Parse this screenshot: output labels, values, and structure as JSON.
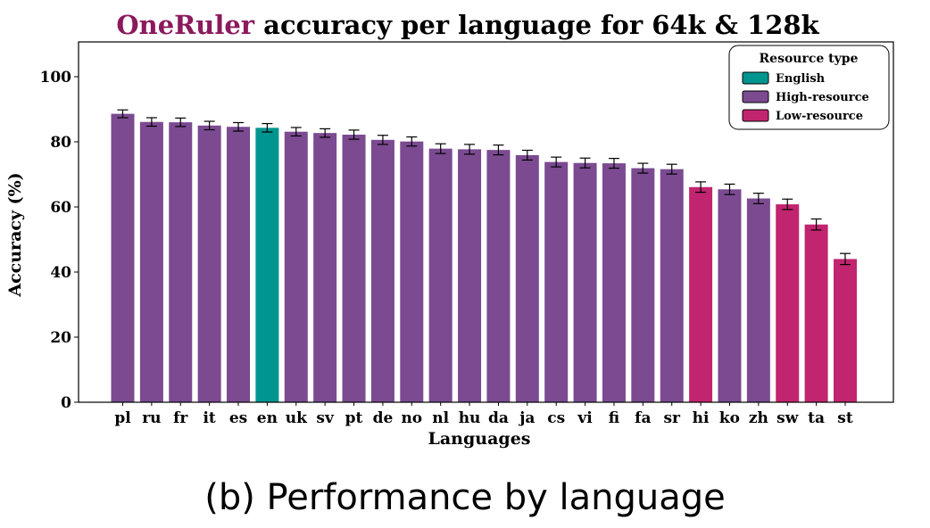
{
  "figure": {
    "caption": "(b) Performance by language"
  },
  "chart_data": {
    "type": "bar",
    "title": {
      "highlight": "OneRuler",
      "rest": " accuracy per language for 64k & 128k",
      "highlight_color": "#8B1A5C"
    },
    "xlabel": "Languages",
    "ylabel": "Accuracy (%)",
    "ylim": [
      0,
      110
    ],
    "yticks": [
      0,
      20,
      40,
      60,
      80,
      100
    ],
    "grid": false,
    "categories": [
      "pl",
      "ru",
      "fr",
      "it",
      "es",
      "en",
      "uk",
      "sv",
      "pt",
      "de",
      "no",
      "nl",
      "hu",
      "da",
      "ja",
      "cs",
      "vi",
      "fi",
      "fa",
      "sr",
      "hi",
      "ko",
      "zh",
      "sw",
      "ta",
      "st"
    ],
    "values": [
      88.6,
      86.1,
      86.0,
      85.0,
      84.6,
      84.3,
      83.1,
      82.7,
      82.2,
      80.6,
      80.1,
      77.9,
      77.7,
      77.5,
      75.9,
      73.8,
      73.5,
      73.4,
      71.9,
      71.6,
      66.1,
      65.4,
      62.6,
      60.8,
      54.6,
      44.0
    ],
    "errors": [
      1.2,
      1.3,
      1.3,
      1.3,
      1.3,
      1.3,
      1.3,
      1.3,
      1.4,
      1.4,
      1.4,
      1.5,
      1.5,
      1.5,
      1.5,
      1.5,
      1.5,
      1.5,
      1.5,
      1.5,
      1.6,
      1.6,
      1.6,
      1.6,
      1.7,
      1.7
    ],
    "groups": [
      "High-resource",
      "High-resource",
      "High-resource",
      "High-resource",
      "High-resource",
      "English",
      "High-resource",
      "High-resource",
      "High-resource",
      "High-resource",
      "High-resource",
      "High-resource",
      "High-resource",
      "High-resource",
      "High-resource",
      "High-resource",
      "High-resource",
      "High-resource",
      "High-resource",
      "High-resource",
      "Low-resource",
      "High-resource",
      "High-resource",
      "Low-resource",
      "Low-resource",
      "Low-resource"
    ],
    "legend": {
      "title": "Resource type",
      "position": "top-right",
      "entries": [
        {
          "name": "English",
          "color": "#00968F"
        },
        {
          "name": "High-resource",
          "color": "#7B4A91"
        },
        {
          "name": "Low-resource",
          "color": "#C2256F"
        }
      ]
    }
  }
}
